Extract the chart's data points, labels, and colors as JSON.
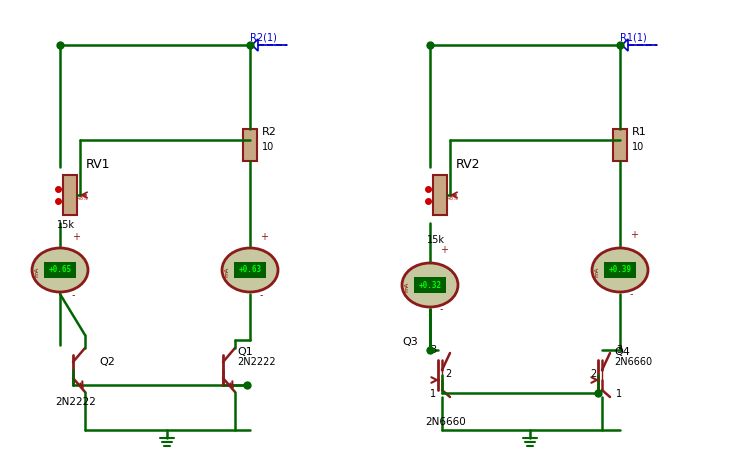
{
  "bg_color": "#ffffff",
  "wire_color": "#006400",
  "component_color": "#8B1A1A",
  "meter_bg": "#C8C8A0",
  "meter_text_color": "#00ff00",
  "meter_border": "#8B1A1A",
  "dot_color": "#006400",
  "label_color": "#000000",
  "connector_color": "#0000CD",
  "dashed_color": "#0000CD",
  "left_circuit": {
    "label": "RV1",
    "pot_label": "15k",
    "r_label": "R2",
    "r_val": "10",
    "q_ref_label": "Q2",
    "q_ref_model": "2N2222",
    "q_out_label": "Q1",
    "q_out_model": "2N2222",
    "meter1_val": "+0.65",
    "meter2_val": "+0.63",
    "connector_label": "R2(1)"
  },
  "right_circuit": {
    "label": "RV2",
    "pot_label": "15k",
    "r_label": "R1",
    "r_val": "10",
    "q_ref_label": "Q3",
    "q_ref_model": "2N6660",
    "q_out_label": "Q4",
    "q_out_model": "2N6660",
    "meter1_val": "+0.32",
    "meter2_val": "+0.39",
    "connector_label": "R1(1)"
  }
}
